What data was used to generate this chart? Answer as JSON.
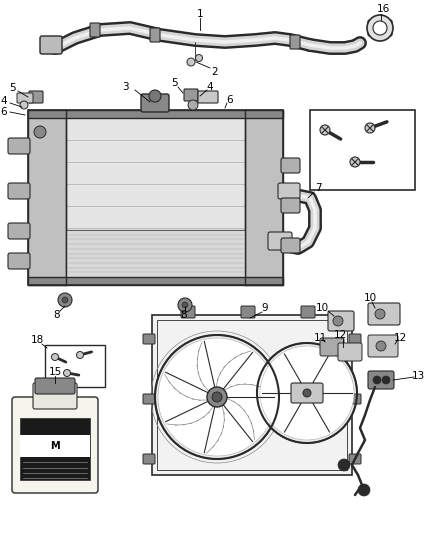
{
  "bg_color": "#ffffff",
  "fig_width": 4.38,
  "fig_height": 5.33,
  "dpi": 100,
  "line_color": "#2a2a2a",
  "light_gray": "#c8c8c8",
  "mid_gray": "#888888",
  "dark_gray": "#444444"
}
